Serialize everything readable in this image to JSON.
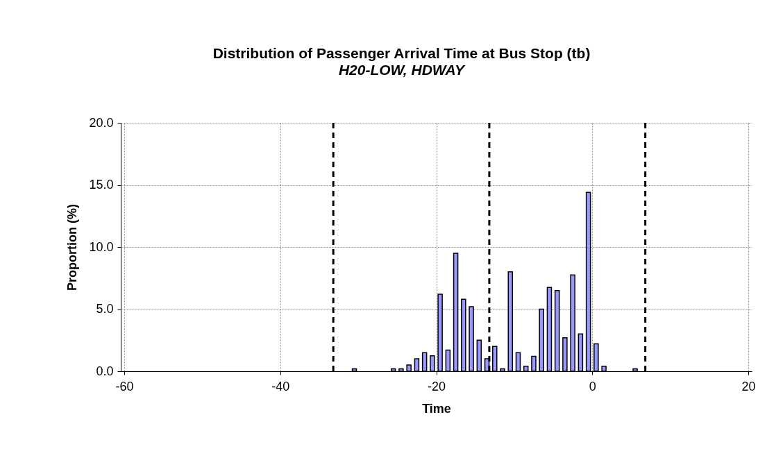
{
  "chart_data": {
    "type": "bar",
    "title": "Distribution of Passenger Arrival Time at Bus Stop (tb)",
    "subtitle": "H20-LOW, HDWAY",
    "xlabel": "Time",
    "ylabel": "Proportion (%)",
    "x": [
      -30.5,
      -25.5,
      -24.5,
      -23.5,
      -22.5,
      -21.5,
      -20.5,
      -19.5,
      -18.5,
      -17.5,
      -16.5,
      -15.5,
      -14.5,
      -13.5,
      -12.5,
      -11.5,
      -10.5,
      -9.5,
      -8.5,
      -7.5,
      -6.5,
      -5.5,
      -4.5,
      -3.5,
      -2.5,
      -1.5,
      -0.5,
      0.5,
      1.5,
      5.5
    ],
    "values": [
      0.2,
      0.2,
      0.2,
      0.5,
      1.0,
      1.5,
      1.25,
      6.2,
      1.7,
      9.5,
      5.8,
      5.2,
      2.5,
      1.0,
      2.0,
      0.2,
      8.0,
      1.5,
      0.4,
      1.2,
      5.0,
      6.75,
      6.5,
      2.7,
      7.75,
      3.0,
      14.4,
      2.2,
      0.4,
      0.2
    ],
    "color": "#9999ff",
    "xlim": [
      -60,
      20
    ],
    "xticks": [
      -60,
      -40,
      -20,
      0,
      20
    ],
    "ylim": [
      0,
      20
    ],
    "yticks": [
      {
        "value": 0,
        "label": "0.0"
      },
      {
        "value": 5,
        "label": "5.0"
      },
      {
        "value": 10,
        "label": "10.0"
      },
      {
        "value": 15,
        "label": "15.0"
      },
      {
        "value": 20,
        "label": "20.0"
      }
    ],
    "grid": true,
    "ref_lines": [
      {
        "axis": "x",
        "value": -33.2,
        "color": "#000000",
        "line_style": "dashed"
      },
      {
        "axis": "x",
        "value": -13.2,
        "color": "#000000",
        "line_style": "dashed"
      },
      {
        "axis": "x",
        "value": 6.8,
        "color": "#000000",
        "line_style": "dashed"
      }
    ]
  }
}
